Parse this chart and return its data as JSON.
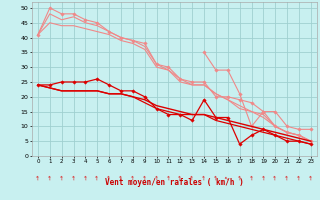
{
  "title": "",
  "xlabel": "Vent moyen/en rafales ( km/h )",
  "background_color": "#c8f0f0",
  "grid_color": "#a0d0d0",
  "xlim": [
    -0.5,
    23.5
  ],
  "ylim": [
    0,
    52
  ],
  "yticks": [
    0,
    5,
    10,
    15,
    20,
    25,
    30,
    35,
    40,
    45,
    50
  ],
  "xticks": [
    0,
    1,
    2,
    3,
    4,
    5,
    6,
    7,
    8,
    9,
    10,
    11,
    12,
    13,
    14,
    15,
    16,
    17,
    18,
    19,
    20,
    21,
    22,
    23
  ],
  "series_light": [
    {
      "x": [
        0,
        1,
        2,
        3,
        4,
        5,
        6,
        7,
        8,
        9,
        10,
        11,
        12,
        13,
        14,
        15,
        16,
        17,
        18,
        19,
        20,
        21,
        22,
        23
      ],
      "y": [
        41,
        50,
        48,
        48,
        46,
        45,
        42,
        40,
        39,
        38,
        31,
        30,
        26,
        25,
        25,
        20,
        20,
        19,
        18,
        15,
        10,
        8,
        7,
        5
      ],
      "color": "#f08888",
      "lw": 0.8,
      "marker": true
    },
    {
      "x": [
        0,
        1,
        2,
        3,
        4,
        5,
        6,
        7,
        8,
        9,
        10,
        11,
        12,
        13,
        14,
        15,
        16,
        17,
        18,
        19,
        20,
        21,
        22,
        23
      ],
      "y": [
        41,
        48,
        46,
        47,
        45,
        44,
        42,
        40,
        39,
        37,
        31,
        29,
        26,
        24,
        24,
        21,
        19,
        17,
        15,
        14,
        10,
        8,
        7,
        5
      ],
      "color": "#f08888",
      "lw": 0.8,
      "marker": false
    },
    {
      "x": [
        0,
        1,
        2,
        3,
        4,
        5,
        6,
        7,
        8,
        9,
        10,
        11,
        12,
        13,
        14,
        15,
        16,
        17,
        18,
        19,
        20,
        21,
        22,
        23
      ],
      "y": [
        41,
        45,
        44,
        44,
        43,
        42,
        41,
        39,
        38,
        36,
        30,
        29,
        25,
        24,
        24,
        21,
        19,
        16,
        15,
        13,
        10,
        8,
        7,
        5
      ],
      "color": "#f08888",
      "lw": 0.8,
      "marker": false
    },
    {
      "x": [
        14,
        15,
        16,
        17,
        18,
        19,
        20,
        21,
        22,
        23
      ],
      "y": [
        35,
        29,
        29,
        21,
        10,
        15,
        15,
        10,
        9,
        9
      ],
      "color": "#f08888",
      "lw": 0.8,
      "marker": true
    }
  ],
  "series_dark": [
    {
      "x": [
        0,
        1,
        2,
        3,
        4,
        5,
        6,
        7,
        8,
        9,
        10,
        11,
        12,
        13,
        14,
        15,
        16,
        17,
        18,
        19,
        20,
        21,
        22,
        23
      ],
      "y": [
        24,
        24,
        25,
        25,
        25,
        26,
        24,
        22,
        22,
        20,
        16,
        14,
        14,
        12,
        19,
        13,
        13,
        4,
        7,
        9,
        7,
        5,
        5,
        4
      ],
      "color": "#dd0000",
      "lw": 0.9,
      "marker": true
    },
    {
      "x": [
        0,
        1,
        2,
        3,
        4,
        5,
        6,
        7,
        8,
        9,
        10,
        11,
        12,
        13,
        14,
        15,
        16,
        17,
        18,
        19,
        20,
        21,
        22,
        23
      ],
      "y": [
        24,
        23,
        22,
        22,
        22,
        22,
        21,
        21,
        20,
        19,
        17,
        16,
        15,
        14,
        14,
        13,
        12,
        11,
        10,
        9,
        8,
        7,
        6,
        5
      ],
      "color": "#dd0000",
      "lw": 1.0,
      "marker": false
    },
    {
      "x": [
        0,
        1,
        2,
        3,
        4,
        5,
        6,
        7,
        8,
        9,
        10,
        11,
        12,
        13,
        14,
        15,
        16,
        17,
        18,
        19,
        20,
        21,
        22,
        23
      ],
      "y": [
        24,
        23,
        22,
        22,
        22,
        22,
        21,
        21,
        20,
        18,
        16,
        15,
        14,
        14,
        14,
        12,
        11,
        10,
        9,
        8,
        7,
        6,
        5,
        4
      ],
      "color": "#dd0000",
      "lw": 0.9,
      "marker": false
    }
  ]
}
